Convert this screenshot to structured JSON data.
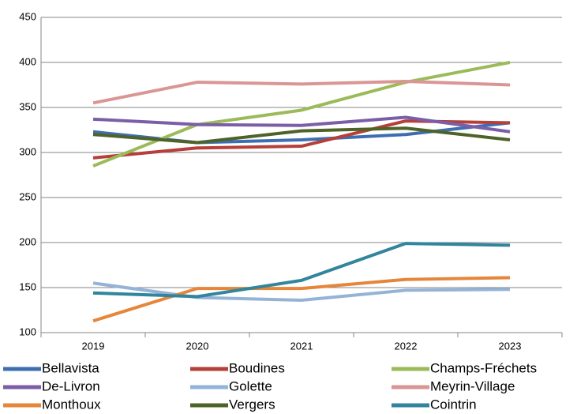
{
  "chart_data": {
    "type": "line",
    "categories": [
      "2019",
      "2020",
      "2021",
      "2022",
      "2023"
    ],
    "ylim": [
      100,
      450
    ],
    "yticks": [
      100,
      150,
      200,
      250,
      300,
      350,
      400,
      450
    ],
    "grid": true,
    "series": [
      {
        "name": "Bellavista",
        "color": "#3d6fb0",
        "values": [
          323,
          311,
          314,
          320,
          333
        ]
      },
      {
        "name": "Boudines",
        "color": "#b5403a",
        "values": [
          294,
          305,
          307,
          335,
          333
        ]
      },
      {
        "name": "Champs-Fréchets",
        "color": "#9bbb59",
        "values": [
          285,
          331,
          347,
          378,
          400
        ]
      },
      {
        "name": "De-Livron",
        "color": "#7b5ea7",
        "values": [
          337,
          331,
          330,
          339,
          323
        ]
      },
      {
        "name": "Golette",
        "color": "#95b3d7",
        "values": [
          155,
          139,
          136,
          147,
          148
        ]
      },
      {
        "name": "Meyrin-Village",
        "color": "#d99694",
        "values": [
          355,
          378,
          376,
          379,
          375
        ]
      },
      {
        "name": "Monthoux",
        "color": "#e5863a",
        "values": [
          113,
          149,
          149,
          159,
          161
        ]
      },
      {
        "name": "Vergers",
        "color": "#4f6228",
        "values": [
          320,
          311,
          324,
          327,
          314
        ]
      },
      {
        "name": "Cointrin",
        "color": "#31859c",
        "values": [
          144,
          140,
          158,
          199,
          197
        ]
      }
    ]
  }
}
